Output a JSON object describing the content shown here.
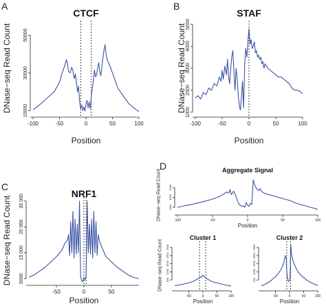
{
  "figure": {
    "panel_labels": [
      "A",
      "B",
      "C",
      "D"
    ]
  },
  "chart_data": [
    {
      "id": "ctcf",
      "panel": "A",
      "type": "line",
      "title": "CTCF",
      "xlabel": "Position",
      "ylabel": "DNase−seq Read Count",
      "xlim": [
        -100,
        100
      ],
      "ylim": [
        8000,
        57000
      ],
      "xticks": [
        -100,
        -50,
        0,
        50,
        100
      ],
      "yticks": [
        10000,
        30000,
        50000
      ],
      "ytick_labels": [
        "10000",
        "30000",
        "50000"
      ],
      "vlines": [
        -10,
        10
      ],
      "color": "#3a53a4",
      "series": [
        {
          "x": [
            -100,
            -90,
            -80,
            -70,
            -60,
            -55,
            -50,
            -45,
            -40,
            -37,
            -35,
            -33,
            -30,
            -27,
            -25,
            -22,
            -20,
            -18,
            -16,
            -14,
            -12,
            -10,
            -8,
            -6,
            -4,
            -2,
            0,
            2,
            4,
            6,
            8,
            10,
            12,
            14,
            16,
            18,
            20,
            22,
            24,
            26,
            28,
            30,
            32,
            34,
            36,
            38,
            40,
            45,
            50,
            55,
            60,
            70,
            80,
            90,
            100
          ],
          "y": [
            10500,
            12500,
            15000,
            17500,
            20000,
            22500,
            25000,
            30000,
            34000,
            37000,
            35000,
            31000,
            30000,
            33000,
            31500,
            27000,
            29500,
            25000,
            20000,
            23000,
            14500,
            11000,
            13000,
            10000,
            12000,
            9800,
            13500,
            15500,
            11500,
            14500,
            11000,
            17500,
            22000,
            25500,
            31500,
            28000,
            29000,
            32500,
            35500,
            31000,
            28500,
            33000,
            38000,
            42000,
            45000,
            40000,
            37000,
            34000,
            30000,
            26000,
            22000,
            18000,
            14000,
            11500,
            9500
          ]
        }
      ]
    },
    {
      "id": "staf",
      "panel": "B",
      "type": "line",
      "title": "STAF",
      "xlabel": "Position",
      "ylabel": "DNase−seq Read Count",
      "xlim": [
        -100,
        100
      ],
      "ylim": [
        900,
        5100
      ],
      "xticks": [
        -100,
        -50,
        0,
        50,
        100
      ],
      "yticks": [
        1000,
        2000,
        3000,
        4000,
        5000
      ],
      "ytick_labels": [
        "1000",
        "2000",
        "3000",
        "4000",
        "5000"
      ],
      "vlines": [
        0
      ],
      "color": "#3a53a4",
      "series": [
        {
          "x": [
            -100,
            -95,
            -90,
            -85,
            -80,
            -75,
            -70,
            -65,
            -60,
            -55,
            -52,
            -50,
            -48,
            -45,
            -42,
            -40,
            -38,
            -36,
            -34,
            -32,
            -30,
            -28,
            -26,
            -24,
            -22,
            -20,
            -18,
            -16,
            -14,
            -12,
            -10,
            -8,
            -6,
            -4,
            -2,
            0,
            1,
            2,
            4,
            6,
            8,
            10,
            12,
            14,
            16,
            18,
            20,
            22,
            24,
            26,
            28,
            30,
            35,
            40,
            45,
            50,
            55,
            60,
            65,
            70,
            75,
            80,
            85,
            90,
            95,
            100
          ],
          "y": [
            1650,
            1750,
            1600,
            1900,
            1800,
            2100,
            2000,
            2300,
            2200,
            2600,
            2400,
            2900,
            2500,
            3100,
            2700,
            3400,
            2600,
            2300,
            3000,
            3500,
            3800,
            2800,
            2000,
            3000,
            2500,
            1800,
            1300,
            1100,
            1700,
            2400,
            1200,
            3200,
            3900,
            3500,
            4200,
            4800,
            4500,
            4100,
            4300,
            3900,
            4000,
            4200,
            3700,
            3800,
            3500,
            3600,
            3400,
            3500,
            3200,
            3300,
            3000,
            3200,
            3000,
            2900,
            2800,
            2700,
            2600,
            2600,
            2500,
            2400,
            2300,
            2100,
            2000,
            2000,
            1950,
            1850
          ]
        }
      ]
    },
    {
      "id": "nrf1",
      "panel": "C",
      "type": "line",
      "title": "NRF1",
      "xlabel": "Position",
      "ylabel": "DNase−seq Read Count",
      "xlim": [
        -100,
        100
      ],
      "ylim": [
        3500,
        36000
      ],
      "xticks": [
        -50,
        0,
        50
      ],
      "yticks": [
        5000,
        15000,
        25000,
        35000
      ],
      "ytick_labels": [
        "5000",
        "15 000",
        "25 000",
        "35 000"
      ],
      "vlines": [
        0,
        4
      ],
      "color": "#3a53a4",
      "series": [
        {
          "x": [
            -100,
            -90,
            -80,
            -70,
            -60,
            -50,
            -40,
            -35,
            -30,
            -28,
            -26,
            -24,
            -22,
            -20,
            -18,
            -16,
            -14,
            -12,
            -10,
            -8,
            -6,
            -4,
            -2,
            0,
            2,
            4,
            6,
            8,
            10,
            12,
            14,
            16,
            18,
            20,
            22,
            24,
            26,
            28,
            30,
            35,
            40,
            50,
            60,
            70,
            80,
            90,
            100
          ],
          "y": [
            5500,
            6500,
            8000,
            9500,
            11500,
            13500,
            16000,
            18500,
            20000,
            22000,
            14000,
            27000,
            15000,
            31000,
            13000,
            28000,
            14500,
            26000,
            15000,
            35000,
            6000,
            4200,
            3800,
            5500,
            4500,
            6000,
            35000,
            15000,
            26000,
            14500,
            28000,
            13000,
            31000,
            15000,
            27000,
            14000,
            22000,
            20000,
            18500,
            16000,
            13500,
            11500,
            9500,
            8000,
            6500,
            5500,
            5000
          ]
        }
      ]
    },
    {
      "id": "aggregate",
      "panel": "D",
      "type": "line",
      "title": "Aggregate Signal",
      "xlabel": "Position",
      "ylabel": "DNase−seq Read Count",
      "xlim": [
        -100,
        100
      ],
      "ylim": [
        750,
        2500
      ],
      "xticks": [
        -100,
        -50,
        0,
        50,
        100
      ],
      "yticks": [
        1000,
        1500,
        2000
      ],
      "ytick_labels": [
        "1000",
        "1500",
        "2000"
      ],
      "vlines": [],
      "color": "#3a53a4",
      "series": [
        {
          "x": [
            -100,
            -90,
            -80,
            -70,
            -60,
            -50,
            -40,
            -35,
            -30,
            -27,
            -25,
            -23,
            -20,
            -18,
            -16,
            -14,
            -12,
            -10,
            -8,
            -6,
            -4,
            -2,
            0,
            2,
            4,
            6,
            8,
            10,
            12,
            14,
            16,
            18,
            20,
            25,
            30,
            35,
            40,
            50,
            60,
            70,
            80,
            90,
            100
          ],
          "y": [
            1000,
            1080,
            1150,
            1230,
            1320,
            1420,
            1550,
            1650,
            1780,
            1720,
            1900,
            1650,
            1820,
            1700,
            1500,
            1300,
            1150,
            1100,
            1050,
            1080,
            1000,
            1250,
            1100,
            1050,
            1200,
            1150,
            2400,
            2150,
            2000,
            1900,
            1850,
            1950,
            1800,
            1700,
            1650,
            1600,
            1550,
            1450,
            1350,
            1200,
            1100,
            1000,
            900
          ]
        }
      ]
    },
    {
      "id": "cluster1",
      "panel": "D",
      "type": "line",
      "title": "Cluster 1",
      "xlabel": "Position",
      "ylabel": "DNase−seq Read Count",
      "xlim": [
        -100,
        100
      ],
      "ylim": [
        0,
        2800
      ],
      "xticks": [
        -50,
        0,
        50,
        100
      ],
      "yticks": [
        500,
        1000,
        1500,
        2000,
        2500
      ],
      "ytick_labels": [
        "500",
        "1000",
        "1500",
        "2000",
        "2500"
      ],
      "vlines": [
        -12,
        10
      ],
      "color": "#3a53a4",
      "series": [
        {
          "x": [
            -100,
            -80,
            -60,
            -40,
            -30,
            -20,
            -15,
            -10,
            -5,
            0,
            5,
            10,
            15,
            20,
            30,
            40,
            60,
            80,
            100
          ],
          "y": [
            150,
            200,
            280,
            380,
            450,
            550,
            600,
            700,
            650,
            800,
            700,
            650,
            560,
            520,
            420,
            360,
            270,
            190,
            130
          ]
        }
      ]
    },
    {
      "id": "cluster2",
      "panel": "D",
      "type": "line",
      "title": "Cluster 2",
      "xlabel": "Position",
      "ylabel": "",
      "xlim": [
        -100,
        100
      ],
      "ylim": [
        0,
        2800
      ],
      "xticks": [
        -50,
        0,
        50,
        100
      ],
      "yticks": [
        500,
        1000,
        1500,
        2000,
        2500
      ],
      "ytick_labels": [
        "500",
        "1000",
        "1500",
        "2000",
        "2500"
      ],
      "vlines": [
        -10,
        4
      ],
      "color": "#3a53a4",
      "series": [
        {
          "x": [
            -100,
            -90,
            -80,
            -70,
            -60,
            -50,
            -40,
            -30,
            -25,
            -20,
            -15,
            -12,
            -10,
            -8,
            -5,
            -3,
            0,
            2,
            4,
            6,
            8,
            10,
            12,
            15,
            20,
            25,
            30,
            40,
            50,
            60,
            70,
            80,
            90,
            100
          ],
          "y": [
            150,
            200,
            300,
            400,
            550,
            700,
            900,
            1150,
            1350,
            1600,
            2000,
            1850,
            1100,
            700,
            450,
            400,
            500,
            650,
            2700,
            2300,
            2000,
            1850,
            1700,
            1550,
            1350,
            1150,
            1000,
            800,
            650,
            500,
            400,
            300,
            220,
            160
          ]
        }
      ]
    }
  ]
}
